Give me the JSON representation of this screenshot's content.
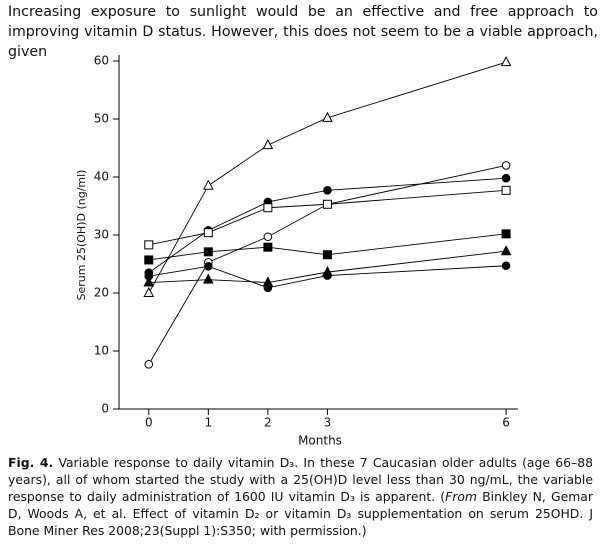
{
  "text": "Increasing exposure to sunlight would be an effective and free approach to improving vitamin D status. However, this does not seem to be a viable approach, given",
  "chart_data": {
    "type": "line",
    "x": [
      0,
      1,
      2,
      3,
      6
    ],
    "xlabel": "Months",
    "ylabel": "Serum 25(OH)D (ng/ml)",
    "xlim": [
      -0.5,
      6.2
    ],
    "xticks": [
      0,
      1,
      2,
      3,
      6
    ],
    "ylim": [
      0,
      60
    ],
    "yticks": [
      0,
      10,
      20,
      30,
      40,
      50,
      60
    ],
    "series": [
      {
        "color": "#000000",
        "marker": "triangle-open",
        "values": [
          20,
          38.5,
          45.5,
          50.2,
          59.8
        ]
      },
      {
        "color": "#000000",
        "marker": "circle-open",
        "values": [
          7.7,
          25.3,
          29.7,
          35.3,
          42
        ]
      },
      {
        "color": "#000000",
        "marker": "circle-filled",
        "values": [
          23.5,
          30.8,
          35.7,
          37.7,
          39.8
        ]
      },
      {
        "color": "#000000",
        "marker": "square-open",
        "values": [
          28.3,
          30.4,
          34.7,
          35.3,
          37.7
        ]
      },
      {
        "color": "#000000",
        "marker": "square-filled",
        "values": [
          25.7,
          27.1,
          27.9,
          26.6,
          30.2
        ]
      },
      {
        "color": "#000000",
        "marker": "triangle-filled",
        "values": [
          21.8,
          22.3,
          21.8,
          23.6,
          27.2
        ]
      },
      {
        "color": "#000000",
        "marker": "circle-filled",
        "values": [
          22.9,
          24.6,
          20.9,
          23,
          24.7
        ]
      }
    ]
  },
  "caption": {
    "label": "Fig. 4.",
    "text1": "Variable response to daily vitamin D₃. In these 7 Caucasian older adults (age 66–88 years), all of whom started the study with a 25(OH)D level less than 30 ng/mL, the variable response to daily administration of 1600 IU vitamin D₃ is apparent. (",
    "italic": "From",
    "text2": " Binkley N, Gemar D, Woods A, et al. Effect of vitamin D₂ or vitamin D₃ supplementation on serum 25OHD. J Bone Miner Res 2008;23(Suppl 1):S350; with permission.)"
  }
}
